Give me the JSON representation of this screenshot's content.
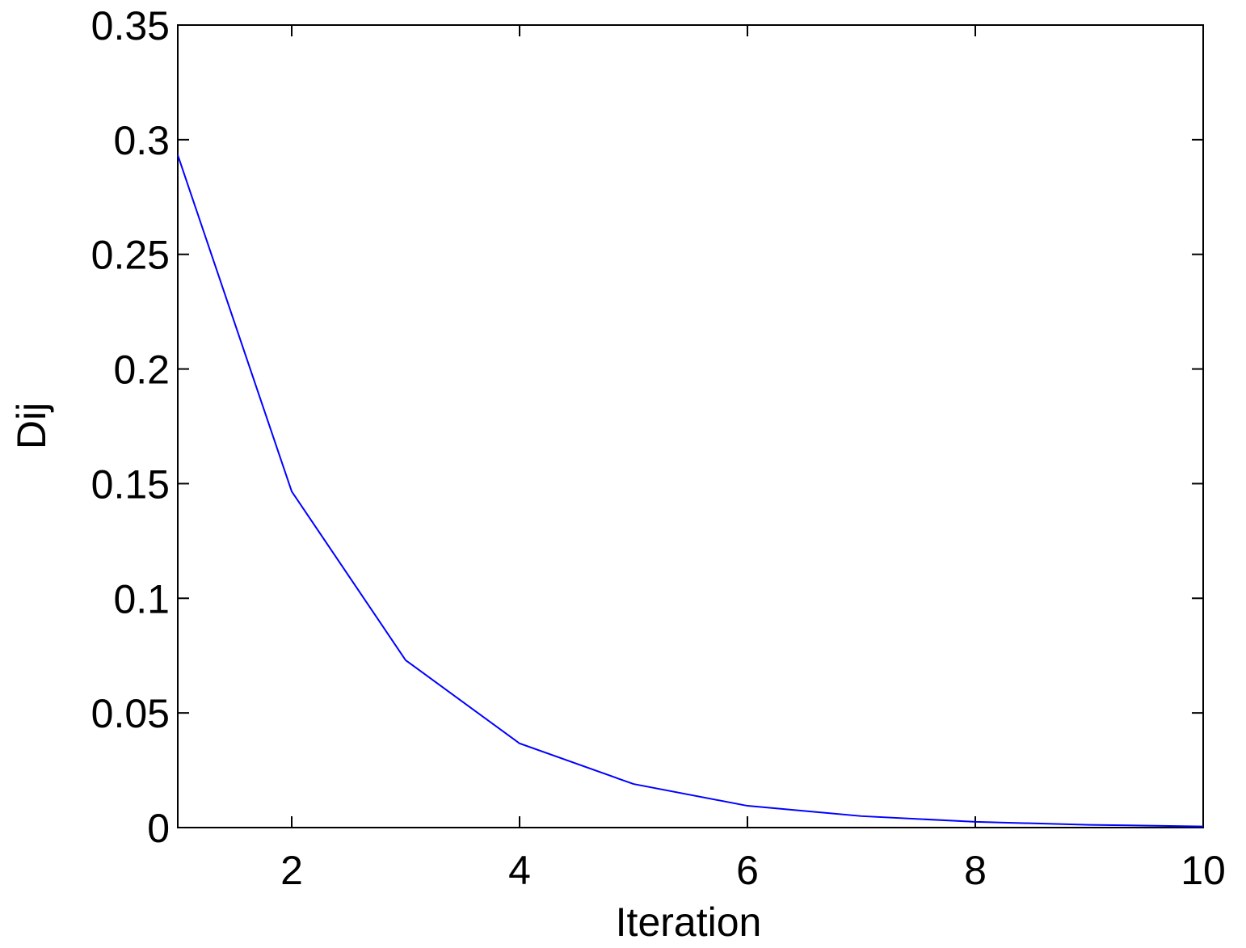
{
  "chart_data": {
    "type": "line",
    "x_label": "Iteration",
    "y_label": "Dij",
    "x": [
      1,
      2,
      3,
      4,
      5,
      6,
      7,
      8,
      9,
      10
    ],
    "series": [
      {
        "color": "#0000ff",
        "values": [
          0.2933,
          0.1466,
          0.073,
          0.0367,
          0.019,
          0.0095,
          0.005,
          0.0025,
          0.0012,
          0.0005
        ]
      }
    ],
    "xlim": [
      1,
      10
    ],
    "xticks": [
      2,
      4,
      6,
      8,
      10
    ],
    "ylim": [
      0,
      0.35
    ],
    "yticks": [
      0,
      0.05,
      0.1,
      0.15,
      0.2,
      0.25,
      0.3,
      0.35
    ]
  }
}
